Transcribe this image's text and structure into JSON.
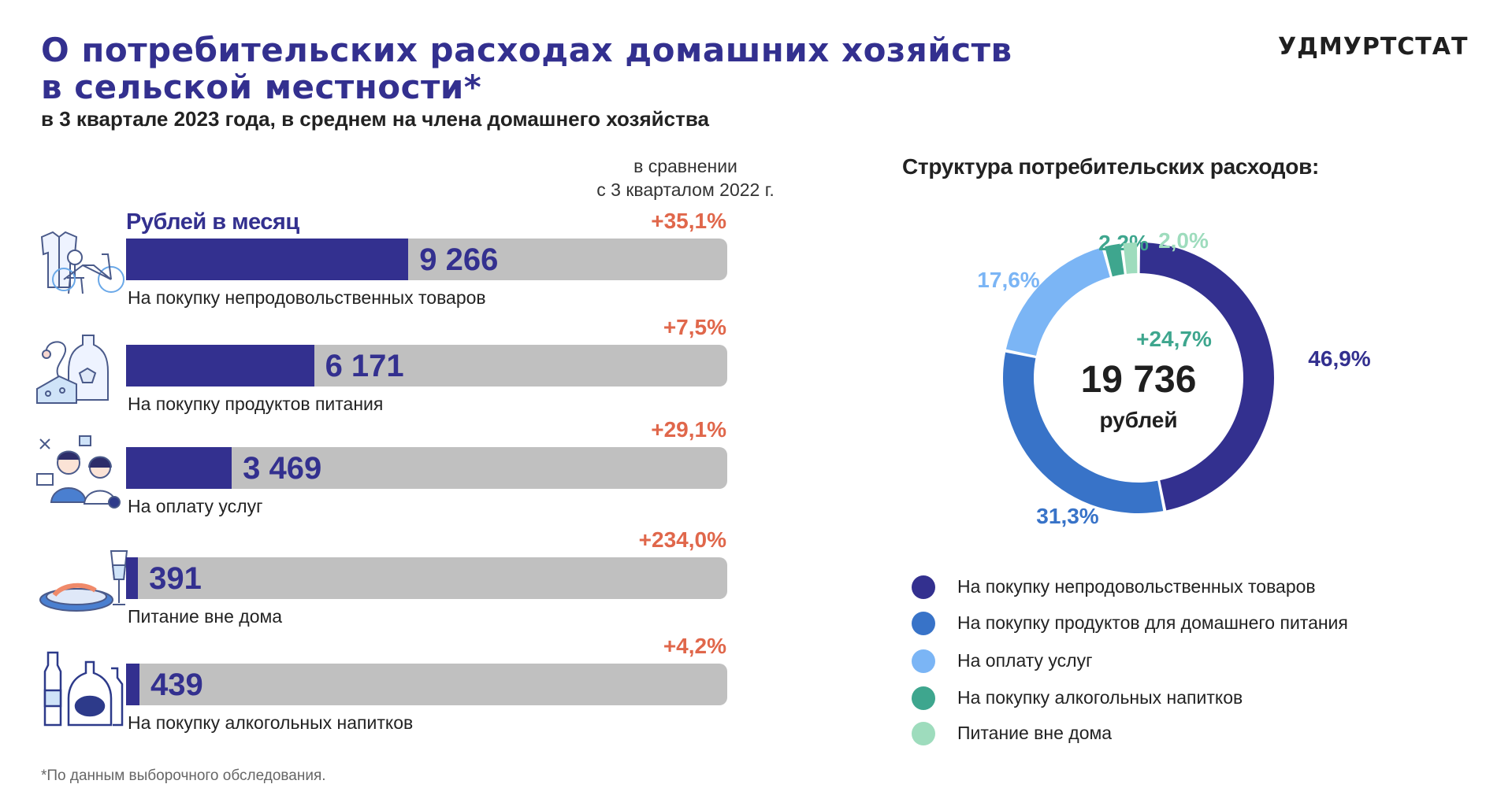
{
  "header": {
    "title_line1": "О потребительских расходах домашних хозяйств",
    "title_line2": "в сельской местности*",
    "subtitle": "в 3 квартале 2023 года, в среднем на члена домашнего хозяйства",
    "brand": "УДМУРТСТАТ"
  },
  "left": {
    "comparison_line1": "в сравнении",
    "comparison_line2": "с 3 кварталом 2022 г.",
    "unit_label": "Рублей в месяц"
  },
  "footnote": "*По данным выборочного обследования.",
  "chart_data": [
    {
      "type": "bar",
      "orientation": "horizontal",
      "categories": [
        "На покупку непродовольственных товаров",
        "На покупку продуктов питания",
        "На оплату услуг",
        "Питание вне дома",
        "На покупку алкогольных напитков"
      ],
      "values": [
        9266,
        6171,
        3469,
        391,
        439
      ],
      "value_labels": [
        "9 266",
        "6 171",
        "3 469",
        "391",
        "439"
      ],
      "change_labels": [
        "+35,1%",
        "+7,5%",
        "+29,1%",
        "+234,0%",
        "+4,2%"
      ],
      "xlim": [
        0,
        19736
      ],
      "colors": {
        "fill": "#33308f",
        "track": "#c0c0c0",
        "change": "#e0674b"
      },
      "icons": [
        "clothes-bicycle-icon",
        "food-bottle-icon",
        "services-people-icon",
        "dish-glass-icon",
        "alcohol-bottles-icon"
      ]
    },
    {
      "type": "pie",
      "style": "donut",
      "title": "Структура потребительских расходов:",
      "center_value": "19 736",
      "center_unit": "рублей",
      "center_change": "+24,7%",
      "categories": [
        "На покупку непродовольственных товаров",
        "На покупку продуктов для домашнего питания",
        "На оплату услуг",
        "На покупку алкогольных напитков",
        "Питание вне дома"
      ],
      "values": [
        46.9,
        31.3,
        17.6,
        2.2,
        2.0
      ],
      "value_labels": [
        "46,9%",
        "31,3%",
        "17,6%",
        "2,2%",
        "2,0%"
      ],
      "colors": [
        "#33308f",
        "#3873c8",
        "#7bb5f5",
        "#3ea68e",
        "#9edcbd"
      ],
      "center_change_color": "#3ea68e",
      "legend": "bottom"
    }
  ]
}
